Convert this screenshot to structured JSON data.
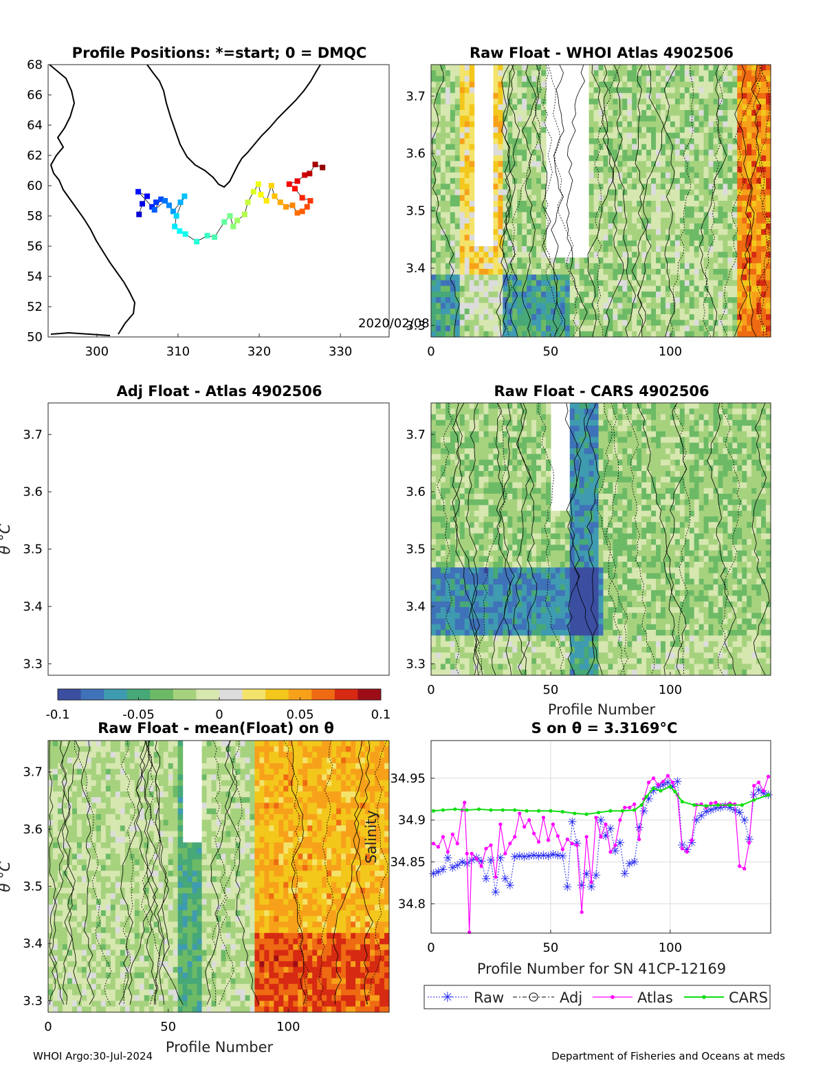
{
  "page": {
    "footer_left": "WHOI Argo:30-Jul-2024",
    "footer_right": "Department of Fisheries and Oceans at meds"
  },
  "colors": {
    "colorbar": [
      "#3b4ea0",
      "#3f72b8",
      "#3f9bb0",
      "#47a878",
      "#6dba66",
      "#a6d27e",
      "#d7e7b0",
      "#dcdcdc",
      "#f4e36a",
      "#f3c71b",
      "#f7a11a",
      "#ee6a13",
      "#d62a12",
      "#9e0d17"
    ],
    "contour": "#000000",
    "raw": "#1f22f2",
    "adj": "#000000",
    "atlas": "#ff00ff",
    "cars": "#11dd11"
  },
  "panels": {
    "map": {
      "title": "Profile Positions: *=start; 0 = DMQC",
      "date_label": "2020/02/08"
    },
    "raw_whoi": {
      "title": "Raw Float - WHOI Atlas  4902506"
    },
    "adj_atlas": {
      "title": "Adj Float - Atlas  4902506",
      "ylabel": "θ °C"
    },
    "raw_cars": {
      "title": "Raw Float - CARS  4902506",
      "xlabel": "Profile Number"
    },
    "raw_mean": {
      "title": "Raw Float - mean(Float) on θ",
      "ylabel": "θ °C",
      "xlabel": "Profile Number"
    },
    "salinity": {
      "title": "S on θ = 3.3169°C",
      "xlabel": "Profile Number for SN 41CP-12169",
      "ylabel": "Salinity"
    }
  },
  "colorbar": {
    "ticks": [
      "-0.1",
      "-0.05",
      "0",
      "0.05",
      "0.1"
    ],
    "range": [
      -0.1,
      0.1
    ]
  },
  "legend": {
    "items": [
      "Raw",
      "Adj",
      "Atlas",
      "CARS"
    ]
  },
  "chart_data": [
    {
      "type": "scatter",
      "name": "map",
      "title": "Profile Positions: *=start; 0 = DMQC",
      "xlim": [
        294,
        336
      ],
      "ylim": [
        50,
        68
      ],
      "xticks": [
        300,
        310,
        320,
        330
      ],
      "yticks": [
        50,
        52,
        54,
        56,
        58,
        60,
        62,
        64,
        66,
        68
      ],
      "annotation": "2020/02/08",
      "track": [
        [
          305.2,
          58.1
        ],
        [
          305.6,
          58.8
        ],
        [
          306.2,
          59.3
        ],
        [
          305.1,
          59.6
        ],
        [
          306.8,
          58.6
        ],
        [
          307.3,
          58.9
        ],
        [
          307.9,
          59.1
        ],
        [
          307.1,
          58.4
        ],
        [
          308.4,
          59.0
        ],
        [
          308.9,
          58.7
        ],
        [
          309.4,
          58.3
        ],
        [
          310.3,
          58.9
        ],
        [
          310.8,
          59.3
        ],
        [
          309.8,
          58.0
        ],
        [
          309.6,
          57.3
        ],
        [
          310.2,
          57.0
        ],
        [
          310.9,
          56.8
        ],
        [
          312.3,
          56.3
        ],
        [
          313.6,
          56.7
        ],
        [
          314.5,
          56.6
        ],
        [
          315.7,
          57.6
        ],
        [
          316.4,
          58.0
        ],
        [
          316.8,
          57.3
        ],
        [
          317.3,
          57.7
        ],
        [
          318.2,
          58.1
        ],
        [
          318.6,
          58.9
        ],
        [
          319.3,
          59.6
        ],
        [
          319.9,
          60.1
        ],
        [
          320.2,
          59.4
        ],
        [
          320.9,
          59.0
        ],
        [
          321.5,
          60.0
        ],
        [
          321.9,
          59.3
        ],
        [
          322.6,
          58.9
        ],
        [
          323.3,
          58.6
        ],
        [
          324.1,
          58.7
        ],
        [
          324.7,
          58.2
        ],
        [
          325.3,
          58.3
        ],
        [
          325.9,
          58.6
        ],
        [
          326.3,
          59.0
        ],
        [
          325.3,
          59.2
        ],
        [
          324.4,
          59.8
        ],
        [
          323.7,
          60.1
        ],
        [
          324.7,
          60.3
        ],
        [
          325.6,
          60.7
        ],
        [
          326.2,
          60.8
        ],
        [
          326.9,
          61.4
        ],
        [
          327.8,
          61.2
        ]
      ]
    },
    {
      "type": "heatmap",
      "name": "raw_whoi",
      "title": "Raw Float - WHOI Atlas  4902506",
      "xlim": [
        0,
        142
      ],
      "ylim": [
        3.28,
        3.755
      ],
      "xticks": [
        0,
        50,
        100
      ],
      "yticks": [
        3.3,
        3.4,
        3.5,
        3.6,
        3.7
      ],
      "colorbar_range": [
        -0.1,
        0.1
      ]
    },
    {
      "type": "heatmap",
      "name": "adj_atlas",
      "title": "Adj Float - Atlas  4902506",
      "ylabel": "θ °C",
      "ylim": [
        3.28,
        3.755
      ],
      "yticks": [
        3.3,
        3.4,
        3.5,
        3.6,
        3.7
      ]
    },
    {
      "type": "heatmap",
      "name": "raw_cars",
      "title": "Raw Float - CARS  4902506",
      "xlabel": "Profile Number",
      "xlim": [
        0,
        142
      ],
      "ylim": [
        3.28,
        3.755
      ],
      "xticks": [
        0,
        50,
        100
      ],
      "yticks": [
        3.3,
        3.4,
        3.5,
        3.6,
        3.7
      ],
      "colorbar_range": [
        -0.1,
        0.1
      ]
    },
    {
      "type": "heatmap",
      "name": "raw_mean",
      "title": "Raw Float - mean(Float) on θ",
      "xlabel": "Profile Number",
      "ylabel": "θ °C",
      "xlim": [
        0,
        142
      ],
      "ylim": [
        3.28,
        3.755
      ],
      "xticks": [
        0,
        50,
        100
      ],
      "yticks": [
        3.3,
        3.4,
        3.5,
        3.6,
        3.7
      ],
      "colorbar_range": [
        -0.1,
        0.1
      ]
    },
    {
      "type": "line",
      "name": "salinity",
      "title": "S on θ = 3.3169°C",
      "xlabel": "Profile Number for SN 41CP-12169",
      "ylabel": "Salinity",
      "xlim": [
        0,
        142
      ],
      "ylim": [
        34.765,
        34.995
      ],
      "xticks": [
        0,
        50,
        100
      ],
      "yticks": [
        34.8,
        34.85,
        34.9,
        34.95
      ],
      "grid": true,
      "legend": "bottom",
      "series": [
        {
          "name": "Raw",
          "x": [
            1,
            3,
            5,
            7,
            9,
            11,
            13,
            15,
            17,
            19,
            21,
            23,
            25,
            27,
            29,
            31,
            33,
            35,
            37,
            39,
            41,
            43,
            45,
            47,
            49,
            51,
            53,
            55,
            57,
            59,
            61,
            63,
            65,
            67,
            69,
            71,
            73,
            75,
            77,
            79,
            81,
            83,
            85,
            87,
            89,
            91,
            93,
            95,
            97,
            99,
            101,
            103,
            105,
            107,
            109,
            111,
            113,
            115,
            117,
            119,
            121,
            123,
            125,
            127,
            129,
            131,
            133,
            135,
            137,
            139,
            141
          ],
          "y": [
            34.836,
            34.838,
            34.841,
            34.855,
            34.843,
            34.846,
            34.85,
            34.848,
            34.852,
            34.855,
            34.851,
            34.83,
            34.852,
            34.814,
            34.855,
            34.83,
            34.822,
            34.856,
            34.857,
            34.856,
            34.857,
            34.858,
            34.857,
            34.858,
            34.857,
            34.859,
            34.858,
            34.857,
            34.82,
            34.898,
            34.872,
            34.822,
            34.836,
            34.82,
            34.834,
            34.9,
            34.881,
            34.89,
            34.863,
            34.873,
            34.836,
            34.848,
            34.85,
            34.891,
            34.911,
            34.925,
            34.935,
            34.94,
            34.942,
            34.945,
            34.94,
            34.946,
            34.87,
            34.865,
            34.873,
            34.9,
            34.905,
            34.91,
            34.912,
            34.914,
            34.915,
            34.917,
            34.915,
            34.912,
            34.909,
            34.9,
            34.877,
            34.93,
            34.936,
            34.932,
            34.93
          ]
        },
        {
          "name": "Atlas",
          "x": [
            1,
            3,
            5,
            7,
            9,
            11,
            13,
            14,
            15,
            16,
            17,
            19,
            21,
            23,
            25,
            27,
            29,
            31,
            33,
            35,
            37,
            39,
            41,
            43,
            45,
            47,
            49,
            51,
            53,
            55,
            57,
            59,
            61,
            63,
            65,
            67,
            69,
            71,
            73,
            75,
            77,
            79,
            81,
            83,
            85,
            87,
            89,
            91,
            93,
            95,
            97,
            99,
            101,
            103,
            105,
            107,
            109,
            111,
            113,
            115,
            117,
            119,
            121,
            123,
            125,
            127,
            129,
            131,
            133,
            135,
            137,
            139,
            141
          ],
          "y": [
            34.872,
            34.868,
            34.88,
            34.862,
            34.883,
            34.872,
            34.912,
            34.921,
            34.86,
            34.766,
            34.86,
            34.854,
            34.845,
            34.866,
            34.87,
            34.832,
            34.895,
            34.86,
            34.872,
            34.88,
            34.908,
            34.892,
            34.9,
            34.884,
            34.874,
            34.903,
            34.876,
            34.895,
            34.881,
            34.865,
            34.877,
            34.872,
            34.87,
            34.79,
            34.88,
            34.826,
            34.903,
            34.88,
            34.895,
            34.862,
            34.87,
            34.9,
            34.915,
            34.915,
            34.919,
            34.877,
            34.925,
            34.945,
            34.95,
            34.942,
            34.946,
            34.953,
            34.945,
            34.93,
            34.866,
            34.862,
            34.876,
            34.918,
            34.919,
            34.915,
            34.92,
            34.921,
            34.918,
            34.918,
            34.92,
            34.919,
            34.845,
            34.842,
            34.873,
            34.941,
            34.945,
            34.935,
            34.952
          ]
        },
        {
          "name": "CARS",
          "x": [
            1,
            5,
            10,
            15,
            20,
            25,
            30,
            35,
            40,
            45,
            50,
            55,
            60,
            65,
            70,
            75,
            80,
            85,
            88,
            90,
            93,
            96,
            100,
            102,
            105,
            110,
            115,
            120,
            125,
            130,
            135,
            141
          ],
          "y": [
            34.911,
            34.912,
            34.913,
            34.912,
            34.913,
            34.912,
            34.912,
            34.912,
            34.911,
            34.911,
            34.911,
            34.91,
            34.908,
            34.907,
            34.909,
            34.911,
            34.911,
            34.912,
            34.918,
            34.928,
            34.938,
            34.935,
            34.94,
            34.934,
            34.922,
            34.918,
            34.917,
            34.918,
            34.918,
            34.918,
            34.924,
            34.93
          ]
        },
        {
          "name": "Adj",
          "x": [],
          "y": []
        }
      ]
    }
  ]
}
